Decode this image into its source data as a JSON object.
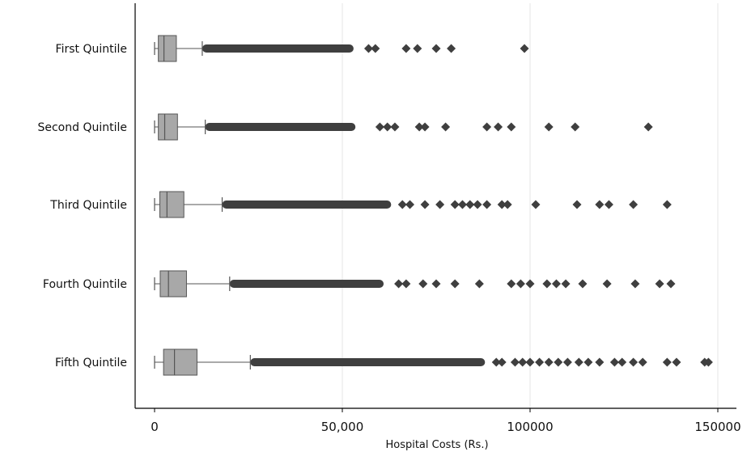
{
  "chart_data": {
    "type": "boxplot",
    "orientation": "horizontal",
    "xlabel": "Hospital Costs (Rs.)",
    "ylabel": "",
    "xlim": [
      -4000,
      154000
    ],
    "xticks": [
      {
        "value": 0,
        "label": "0"
      },
      {
        "value": 50000,
        "label": "50,000"
      },
      {
        "value": 100000,
        "label": "100000"
      },
      {
        "value": 150000,
        "label": "150000"
      }
    ],
    "grid": "vertical",
    "categories": [
      "First Quintile",
      "Second Quintile",
      "Third Quintile",
      "Fourth Quintile",
      "Fifth Quintile"
    ],
    "boxes": [
      {
        "category": "First Quintile",
        "min": 0,
        "q1": 1000,
        "median": 2500,
        "q3": 5800,
        "whisker_high": 12700,
        "dense_outliers": [
          12700,
          53000
        ],
        "outliers": [
          57000,
          58800,
          67000,
          70000,
          75000,
          79000,
          98500
        ]
      },
      {
        "category": "Second Quintile",
        "min": 0,
        "q1": 1000,
        "median": 2700,
        "q3": 6100,
        "whisker_high": 13500,
        "dense_outliers": [
          13500,
          53500
        ],
        "outliers": [
          60000,
          62000,
          64000,
          70500,
          72000,
          77500,
          88500,
          91500,
          95000,
          105000,
          112000,
          131500
        ]
      },
      {
        "category": "Third Quintile",
        "min": 0,
        "q1": 1400,
        "median": 3300,
        "q3": 7800,
        "whisker_high": 18000,
        "dense_outliers": [
          18000,
          63000
        ],
        "outliers": [
          66000,
          68000,
          72000,
          76000,
          80000,
          82000,
          84000,
          86000,
          88500,
          92500,
          94000,
          101500,
          112500,
          118500,
          121000,
          127500,
          136500
        ]
      },
      {
        "category": "Fourth Quintile",
        "min": 0,
        "q1": 1500,
        "median": 3700,
        "q3": 8500,
        "whisker_high": 20000,
        "dense_outliers": [
          20000,
          61000
        ],
        "outliers": [
          65000,
          67000,
          71500,
          75000,
          80000,
          86500,
          95000,
          97500,
          100000,
          104500,
          107000,
          109500,
          114000,
          120500,
          128000,
          134500,
          137500
        ]
      },
      {
        "category": "Fifth Quintile",
        "min": 0,
        "q1": 2400,
        "median": 5300,
        "q3": 11300,
        "whisker_high": 25500,
        "dense_outliers": [
          25500,
          88000
        ],
        "outliers": [
          91000,
          92500,
          96000,
          98000,
          100000,
          102500,
          105000,
          107500,
          110000,
          113000,
          115500,
          118500,
          122500,
          124500,
          127500,
          130000,
          136500,
          139000,
          146500,
          147500
        ]
      }
    ],
    "colors": {
      "box_fill": "#a8a8a8",
      "box_stroke": "#555555",
      "outlier": "#3f3f3f",
      "axis": "#000000",
      "grid": "#e6e6e6"
    }
  }
}
